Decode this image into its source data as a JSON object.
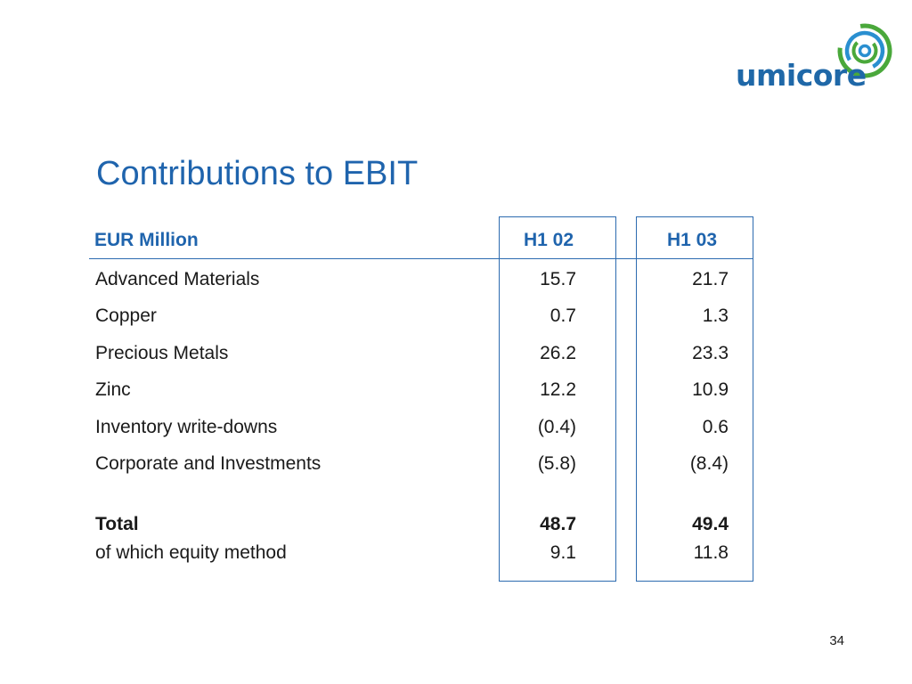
{
  "logo": {
    "wordmark": "umicore",
    "icon": "umicore-swirl-logo-icon",
    "colors": {
      "blue": "#1f68a8",
      "green": "#4aa83b",
      "light_blue": "#2a8fd0"
    }
  },
  "slide": {
    "title": "Contributions to EBIT",
    "page_number": "34",
    "accent_color": "#1f64ad"
  },
  "table": {
    "header": {
      "label": "EUR Million",
      "col1": "H1 02",
      "col2": "H1 03"
    },
    "rows": [
      {
        "label": "Advanced Materials",
        "h1_02": "15.7",
        "h1_03": "21.7"
      },
      {
        "label": "Copper",
        "h1_02": "0.7",
        "h1_03": "1.3"
      },
      {
        "label": "Precious Metals",
        "h1_02": "26.2",
        "h1_03": "23.3"
      },
      {
        "label": "Zinc",
        "h1_02": "12.2",
        "h1_03": "10.9"
      },
      {
        "label": "Inventory write-downs",
        "h1_02": "(0.4)",
        "h1_03": "0.6"
      },
      {
        "label": "Corporate and Investments",
        "h1_02": "(5.8)",
        "h1_03": "(8.4)"
      }
    ],
    "total": {
      "label": "Total",
      "h1_02": "48.7",
      "h1_03": "49.4"
    },
    "equity": {
      "label": "of which equity method",
      "h1_02": "9.1",
      "h1_03": "11.8"
    }
  }
}
